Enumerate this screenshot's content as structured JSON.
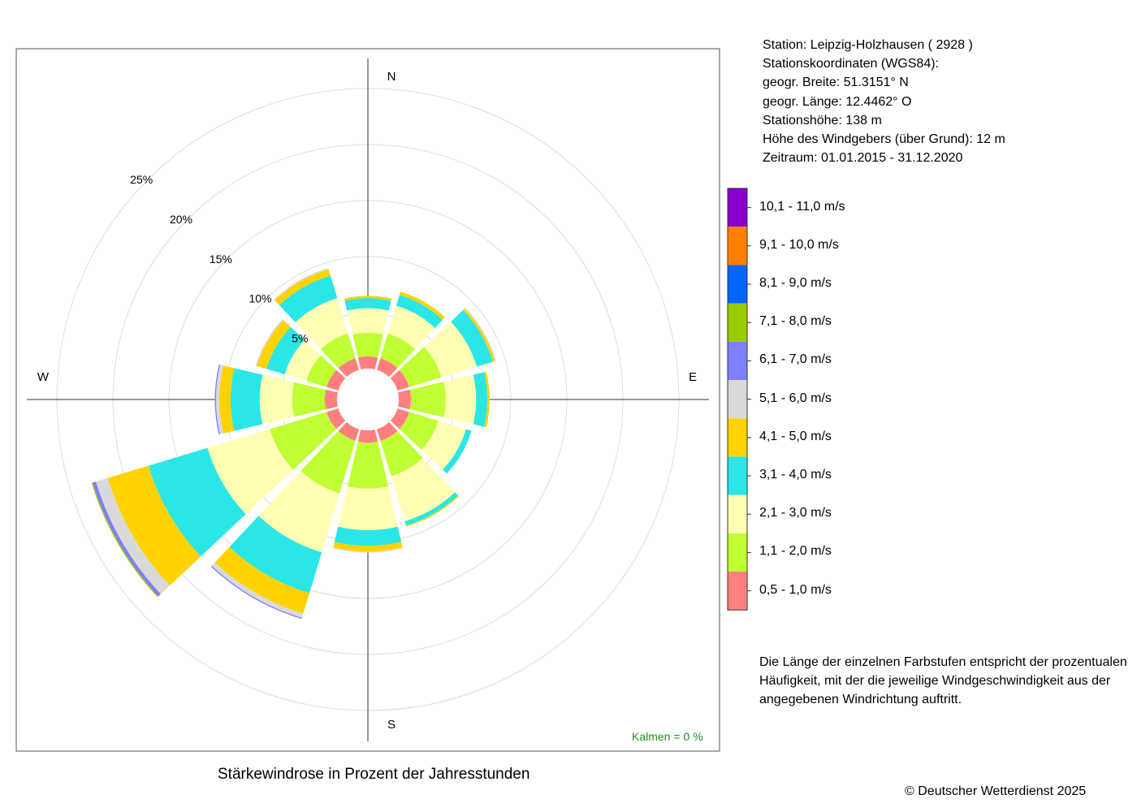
{
  "station_info": [
    "Station:  Leipzig-Holzhausen  ( 2928 )",
    "Stationskoordinaten (WGS84):",
    "geogr. Breite: 51.3151° N",
    "geogr. Länge: 12.4462° O",
    "Stationshöhe: 138 m",
    "Höhe des Windgebers (über Grund): 12 m",
    "Zeitraum: 01.01.2015 - 31.12.2020"
  ],
  "note": "Die Länge der einzelnen Farbstufen entspricht der prozentualen Häufigkeit, mit der die jeweilige Windgeschwindigkeit aus der angegebenen Windrichtung auftritt.",
  "kalmen": "Kalmen  =  0 %",
  "copyright": "© Deutscher Wetterdienst  2025",
  "chart_data": {
    "type": "wind-rose",
    "title": "Stärkewindrose in Prozent der Jahresstunden",
    "directions": [
      "N",
      "E",
      "S",
      "W"
    ],
    "ring_labels": [
      "5%",
      "10%",
      "15%",
      "20%",
      "25%"
    ],
    "rings": [
      5,
      10,
      15,
      20,
      25
    ],
    "sector_angles": [
      0,
      30,
      60,
      90,
      120,
      150,
      180,
      210,
      240,
      270,
      300,
      330
    ],
    "speed_classes": [
      {
        "label": "0,5 - 1,0 m/s",
        "color": "#ff7f7f"
      },
      {
        "label": "1,1 - 2,0 m/s",
        "color": "#bfff33"
      },
      {
        "label": "2,1 - 3,0 m/s",
        "color": "#ffffb3"
      },
      {
        "label": "3,1 - 4,0 m/s",
        "color": "#2ae6e6"
      },
      {
        "label": "4,1 - 5,0 m/s",
        "color": "#ffd200"
      },
      {
        "label": "5,1 - 6,0 m/s",
        "color": "#d9d9d9"
      },
      {
        "label": "6,1 - 7,0 m/s",
        "color": "#7f7fff"
      },
      {
        "label": "7,1 - 8,0 m/s",
        "color": "#99cc00"
      },
      {
        "label": "8,1 - 9,0 m/s",
        "color": "#0066ff"
      },
      {
        "label": "9,1 - 10,0 m/s",
        "color": "#ff8000"
      },
      {
        "label": "10,1 - 11,0 m/s",
        "color": "#8800cc"
      }
    ],
    "cumulative": [
      [
        1.1,
        3.2,
        5.4,
        6.3,
        6.5,
        6.5,
        6.5,
        6.5,
        6.5,
        6.5,
        6.5
      ],
      [
        1.1,
        3.4,
        6.0,
        7.0,
        7.3,
        7.3,
        7.3,
        7.3,
        7.3,
        7.3,
        7.3
      ],
      [
        1.1,
        4.1,
        7.4,
        8.9,
        9.1,
        9.2,
        9.2,
        9.2,
        9.2,
        9.2,
        9.2
      ],
      [
        1.1,
        4.2,
        6.9,
        7.9,
        8.1,
        8.1,
        8.1,
        8.1,
        8.1,
        8.1,
        8.1
      ],
      [
        1.1,
        3.8,
        6.4,
        6.9,
        6.9,
        6.9,
        6.9,
        6.9,
        6.9,
        6.9,
        6.9
      ],
      [
        1.1,
        4.4,
        8.6,
        9.0,
        9.1,
        9.1,
        9.1,
        9.1,
        9.1,
        9.1,
        9.1
      ],
      [
        1.1,
        5.2,
        8.9,
        10.3,
        10.8,
        10.9,
        10.9,
        10.9,
        10.9,
        10.9,
        10.9
      ],
      [
        1.1,
        6.0,
        11.5,
        15.3,
        17.2,
        17.6,
        17.7,
        17.7,
        17.7,
        17.7,
        17.7
      ],
      [
        1.1,
        6.4,
        12.2,
        17.7,
        21.5,
        22.6,
        22.9,
        23.0,
        23.0,
        23.0,
        23.0
      ],
      [
        1.1,
        4.0,
        6.9,
        9.5,
        10.5,
        10.8,
        10.9,
        10.9,
        10.9,
        10.9,
        10.9
      ],
      [
        1.1,
        3.0,
        5.0,
        6.7,
        7.6,
        7.7,
        7.7,
        7.7,
        7.7,
        7.7,
        7.7
      ],
      [
        1.1,
        3.4,
        6.7,
        8.8,
        9.4,
        9.5,
        9.5,
        9.5,
        9.5,
        9.5,
        9.5
      ]
    ]
  }
}
